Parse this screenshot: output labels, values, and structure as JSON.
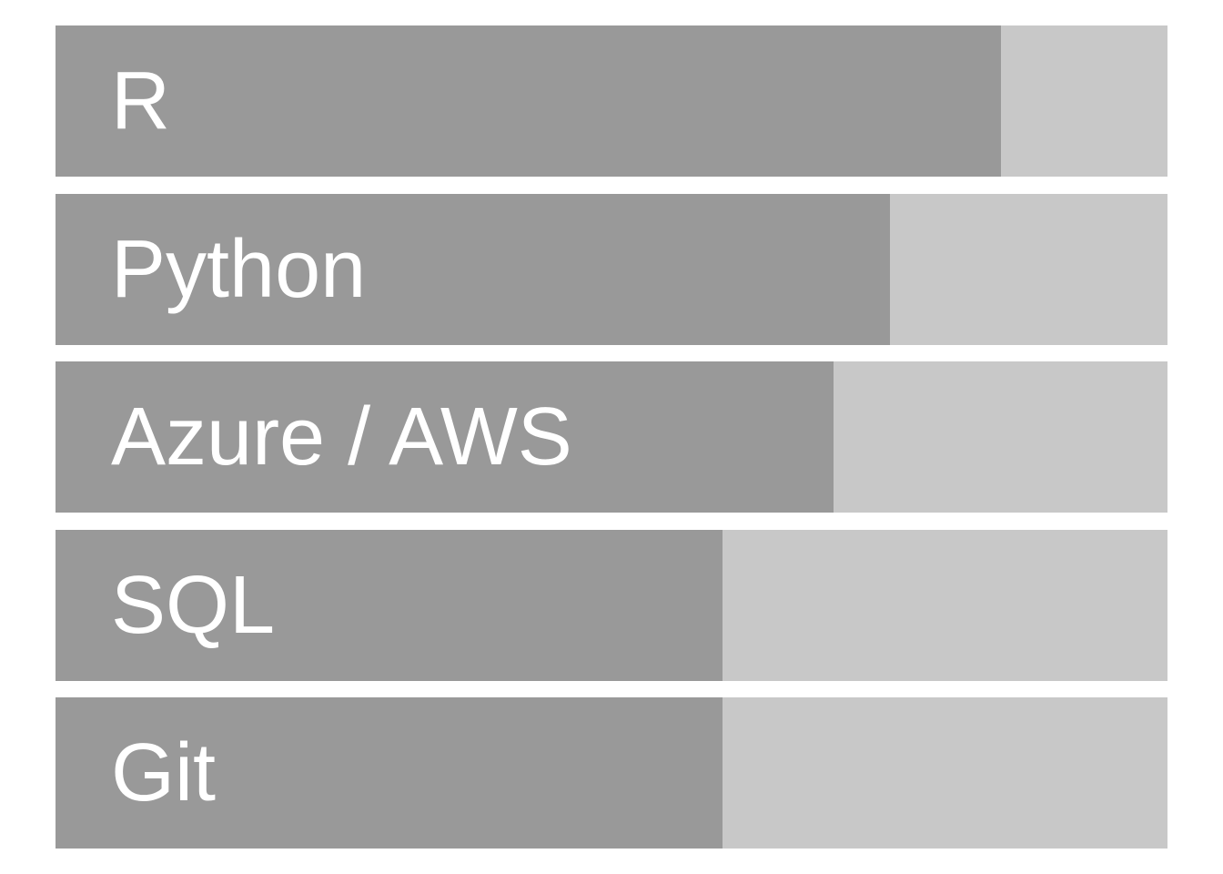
{
  "chart_data": {
    "type": "bar",
    "orientation": "horizontal",
    "categories": [
      "R",
      "Python",
      "Azure / AWS",
      "SQL",
      "Git"
    ],
    "values": [
      85,
      75,
      70,
      60,
      60
    ],
    "xlim": [
      0,
      100
    ],
    "grid": false,
    "legend": "none"
  },
  "colors": {
    "fill": "#999999",
    "track": "#c8c8c8",
    "label": "#ffffff"
  }
}
